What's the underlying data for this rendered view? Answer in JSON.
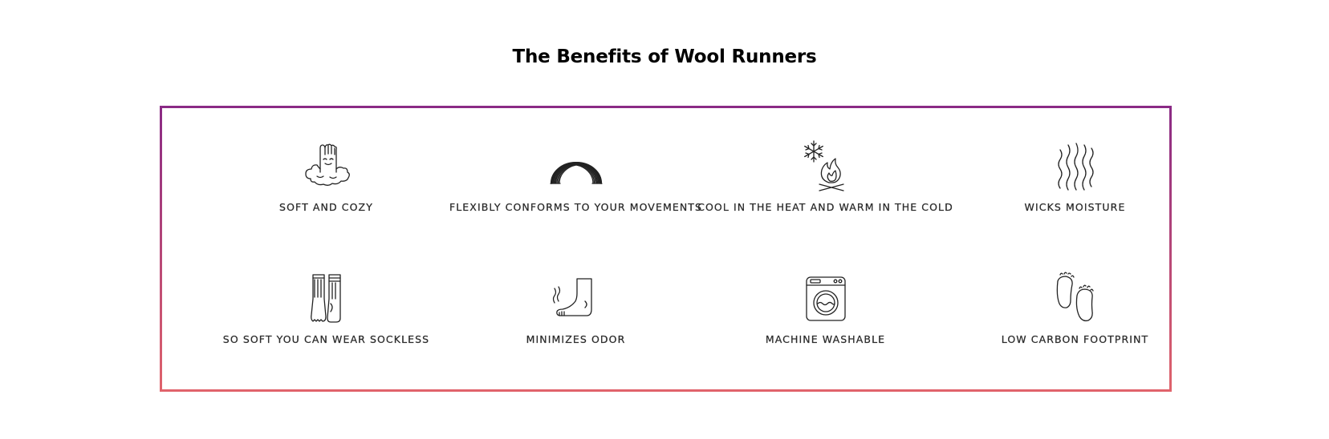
{
  "title": "The Benefits of Wool Runners",
  "colors": {
    "frame_gradient_top": "#8a2a85",
    "frame_gradient_bottom": "#e0636b",
    "text": "#2b2b2b"
  },
  "benefits": [
    {
      "label": "SOFT AND COZY",
      "icon": "foot-on-cloud-icon"
    },
    {
      "label": "FLEXIBLY CONFORMS TO YOUR MOVEMENTS",
      "icon": "slinky-icon"
    },
    {
      "label": "COOL IN THE HEAT AND WARM IN THE COLD",
      "icon": "snowflake-fire-icon"
    },
    {
      "label": "WICKS MOISTURE",
      "icon": "wavy-lines-icon"
    },
    {
      "label": "SO SOFT YOU CAN WEAR SOCKLESS",
      "icon": "socks-icon"
    },
    {
      "label": "MINIMIZES ODOR",
      "icon": "stinky-foot-icon"
    },
    {
      "label": "MACHINE WASHABLE",
      "icon": "washing-machine-icon"
    },
    {
      "label": "LOW CARBON FOOTPRINT",
      "icon": "footprints-icon"
    }
  ]
}
